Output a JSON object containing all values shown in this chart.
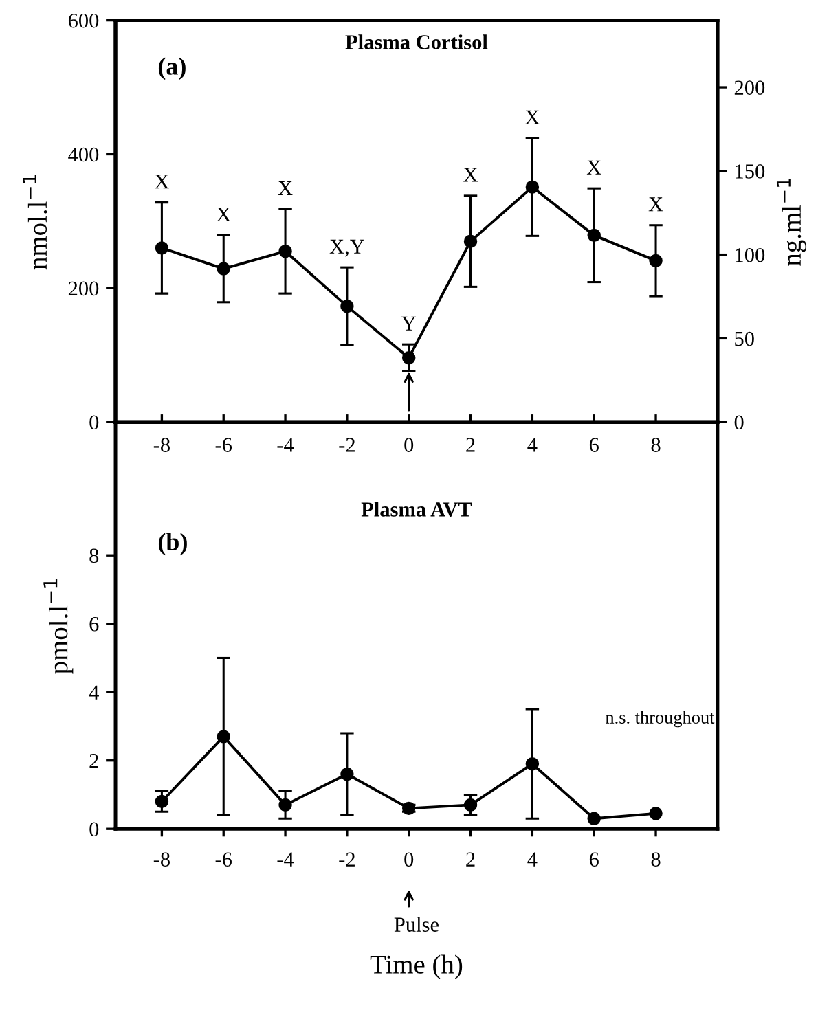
{
  "chart_data": [
    {
      "type": "line",
      "title": "Plasma Cortisol",
      "ylabel": "nmol.l$^{−1}$",
      "y2label": "ng.ml$^{−1}$",
      "x": [
        -8,
        -6,
        -4,
        -2,
        0,
        2,
        4,
        6,
        8
      ],
      "series": [
        {
          "color": "#000000",
          "values": [
            260,
            229,
            255,
            173,
            96,
            270,
            351,
            279,
            241
          ],
          "errors": [
            68,
            50,
            63,
            58,
            20,
            68,
            73,
            70,
            53
          ]
        }
      ],
      "xlim": [
        -9.5,
        10
      ],
      "xticks": [
        -8,
        -6,
        -4,
        -2,
        0,
        2,
        4,
        6,
        8
      ],
      "ylim": [
        0,
        600
      ],
      "yticks": [
        0,
        200,
        400,
        600
      ],
      "y2lim": [
        0,
        240
      ],
      "y2ticks": [
        0,
        50,
        100,
        150,
        200
      ],
      "marker": "circle",
      "line_style": "solid",
      "grid": false,
      "annotations": [
        "(a)",
        {
          "text": "X",
          "x": -8,
          "y": 328
        },
        {
          "text": "X",
          "x": -6,
          "y": 279
        },
        {
          "text": "X",
          "x": -4,
          "y": 318
        },
        {
          "text": "X,Y",
          "x": -2,
          "y": 231
        },
        {
          "text": "Y",
          "x": 0,
          "y": 116
        },
        {
          "text": "X",
          "x": 2,
          "y": 338
        },
        {
          "text": "X",
          "x": 4,
          "y": 424
        },
        {
          "text": "X",
          "x": 6,
          "y": 349
        },
        {
          "text": "X",
          "x": 8,
          "y": 294
        }
      ]
    },
    {
      "type": "line",
      "title": "Plasma AVT",
      "xlabel": "Time (h)",
      "ylabel": "pmol.l$^{−1}$",
      "x": [
        -8,
        -6,
        -4,
        -2,
        0,
        2,
        4,
        6,
        8
      ],
      "series": [
        {
          "color": "#000000",
          "values": [
            0.8,
            2.7,
            0.7,
            1.6,
            0.6,
            0.7,
            1.9,
            0.3,
            0.45
          ],
          "errors": [
            0.3,
            2.3,
            0.4,
            1.2,
            0.1,
            0.3,
            1.6,
            null,
            null
          ]
        }
      ],
      "xlim": [
        -9.5,
        10
      ],
      "xticks": [
        -8,
        -6,
        -4,
        -2,
        0,
        2,
        4,
        6,
        8
      ],
      "ylim": [
        0,
        11.9
      ],
      "yticks": [
        0,
        2,
        4,
        6,
        8
      ],
      "marker": "circle",
      "line_style": "solid",
      "grid": false,
      "annotations": [
        "(b)",
        "n.s. throughout",
        "Pulse"
      ]
    }
  ]
}
